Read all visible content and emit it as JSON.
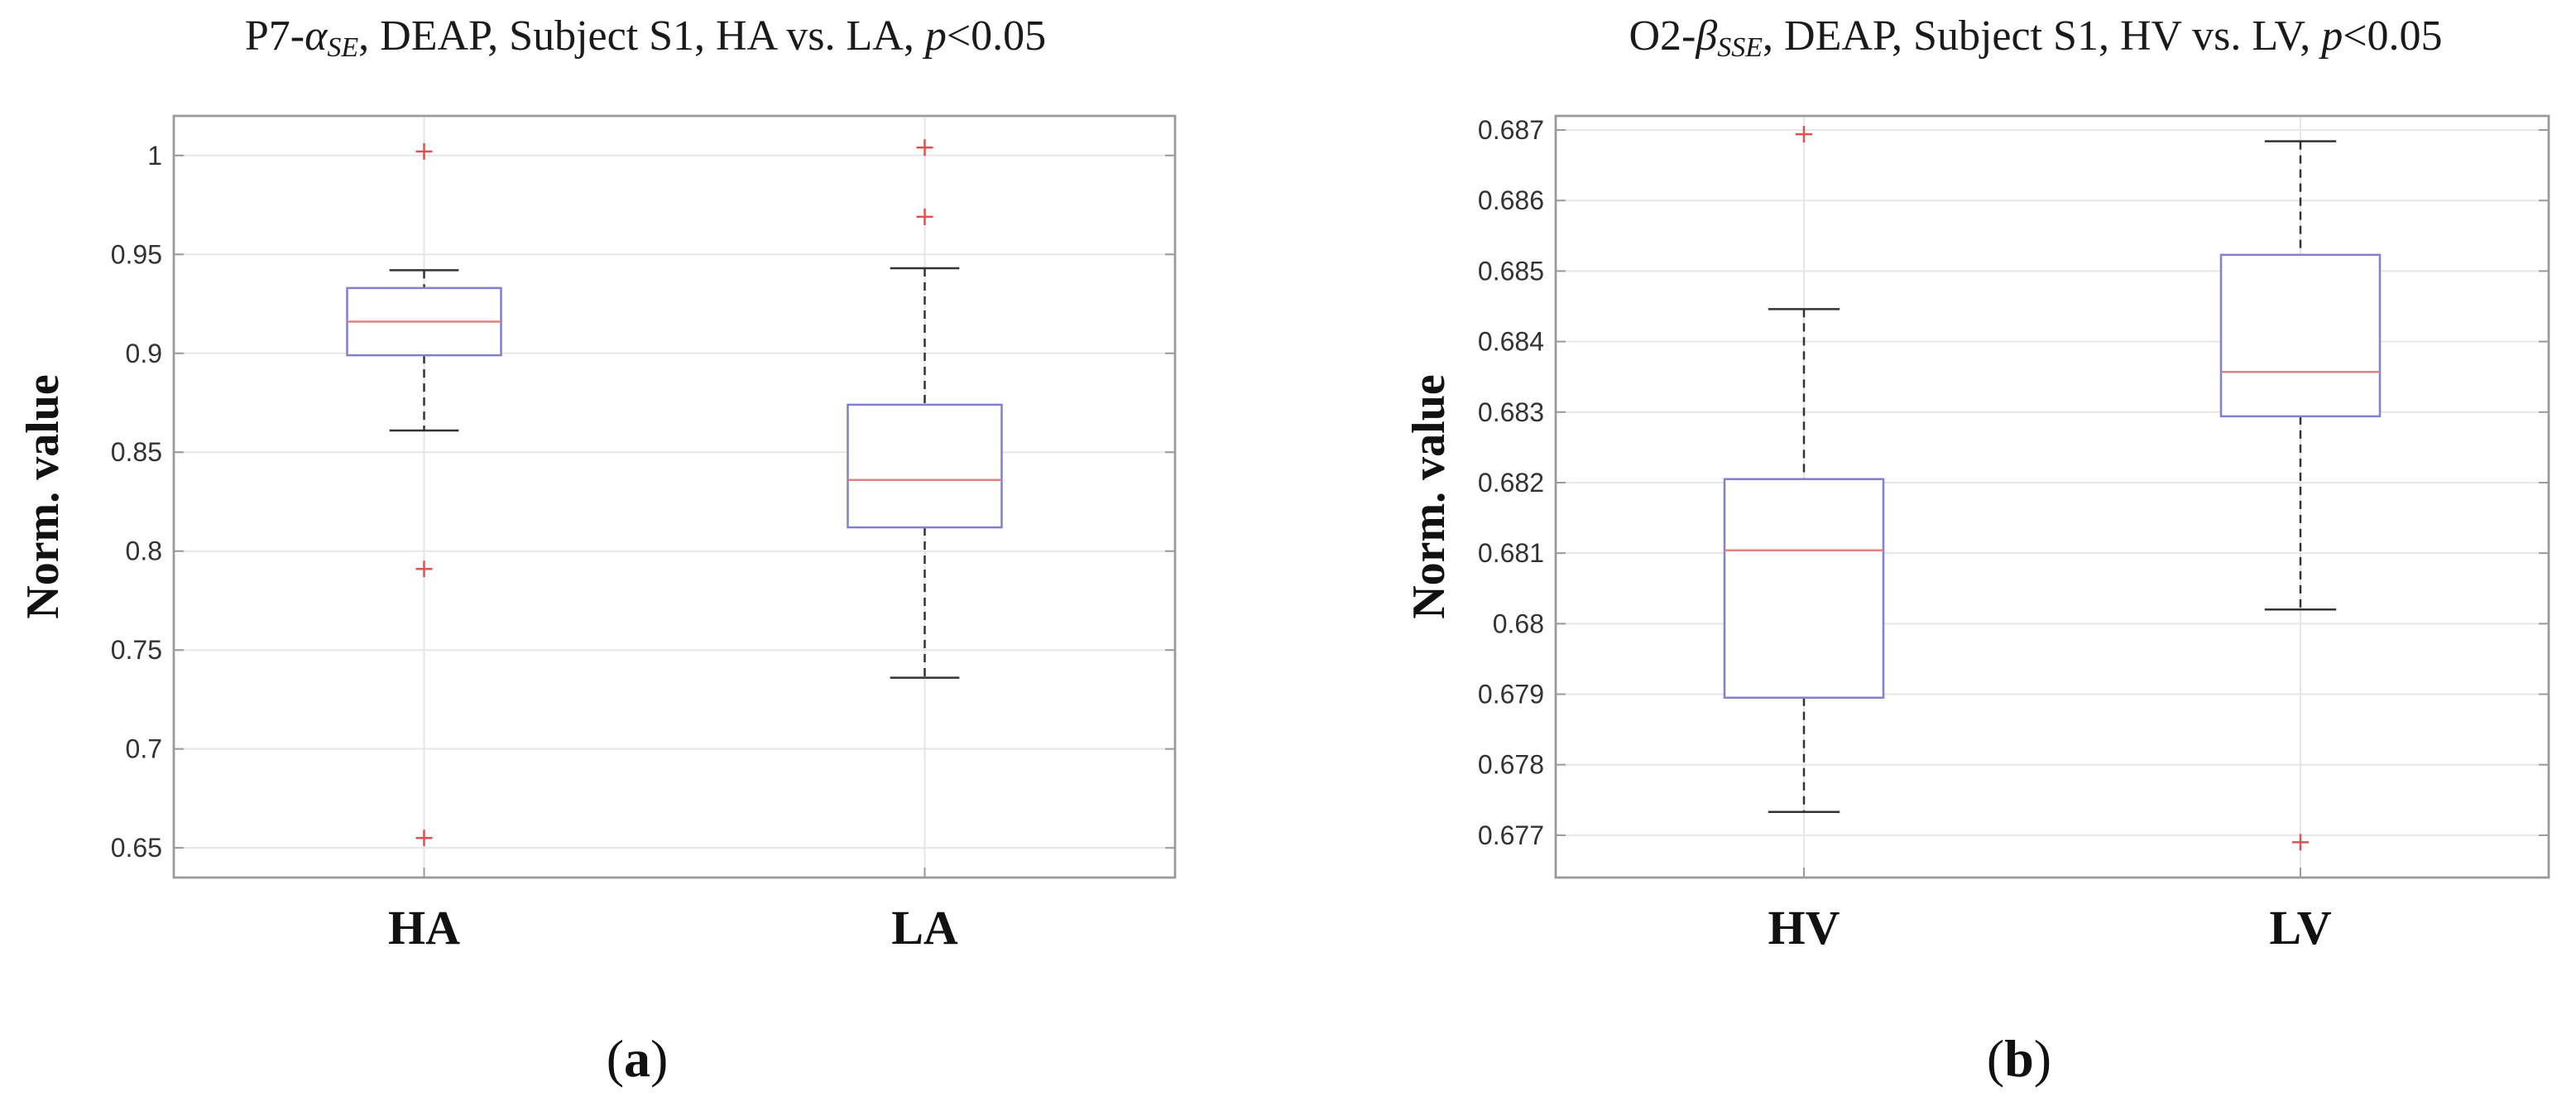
{
  "chart_data": [
    {
      "type": "box",
      "panel_label": "a",
      "title": {
        "prefix": "P7-",
        "symbol": "α",
        "subscript": "SE",
        "middle": ", DEAP, Subject S1, HA vs. LA, ",
        "p": "p",
        "suffix": "<0.05"
      },
      "xlabel": "",
      "ylabel": "Norm. value",
      "categories": [
        "HA",
        "LA"
      ],
      "ylim": [
        0.635,
        1.02
      ],
      "yticks": [
        0.65,
        0.7,
        0.75,
        0.8,
        0.85,
        0.9,
        0.95,
        1
      ],
      "ytick_labels": [
        "0.65",
        "0.7",
        "0.75",
        "0.8",
        "0.85",
        "0.9",
        "0.95",
        "1"
      ],
      "grid": true,
      "boxes": [
        {
          "name": "HA",
          "whisker_low": 0.861,
          "q1": 0.899,
          "median": 0.916,
          "q3": 0.933,
          "whisker_high": 0.942,
          "outliers": [
            1.002,
            0.791,
            0.655
          ]
        },
        {
          "name": "LA",
          "whisker_low": 0.736,
          "q1": 0.812,
          "median": 0.836,
          "q3": 0.874,
          "whisker_high": 0.943,
          "outliers": [
            1.004,
            0.969
          ]
        }
      ]
    },
    {
      "type": "box",
      "panel_label": "b",
      "title": {
        "prefix": "O2-",
        "symbol": "β",
        "subscript": "SSE",
        "middle": ", DEAP, Subject S1, HV vs. LV, ",
        "p": "p",
        "suffix": "<0.05"
      },
      "xlabel": "",
      "ylabel": "Norm. value",
      "categories": [
        "HV",
        "LV"
      ],
      "ylim": [
        0.6764,
        0.6872
      ],
      "yticks": [
        0.677,
        0.678,
        0.679,
        0.68,
        0.681,
        0.682,
        0.683,
        0.684,
        0.685,
        0.686,
        0.687
      ],
      "ytick_labels": [
        "0.677",
        "0.678",
        "0.679",
        "0.68",
        "0.681",
        "0.682",
        "0.683",
        "0.684",
        "0.685",
        "0.686",
        "0.687"
      ],
      "grid": true,
      "boxes": [
        {
          "name": "HV",
          "whisker_low": 0.67733,
          "q1": 0.67895,
          "median": 0.68104,
          "q3": 0.68205,
          "whisker_high": 0.68446,
          "outliers": [
            0.68694
          ]
        },
        {
          "name": "LV",
          "whisker_low": 0.6802,
          "q1": 0.68294,
          "median": 0.68357,
          "q3": 0.68523,
          "whisker_high": 0.68684,
          "outliers": [
            0.6769
          ]
        }
      ]
    }
  ]
}
